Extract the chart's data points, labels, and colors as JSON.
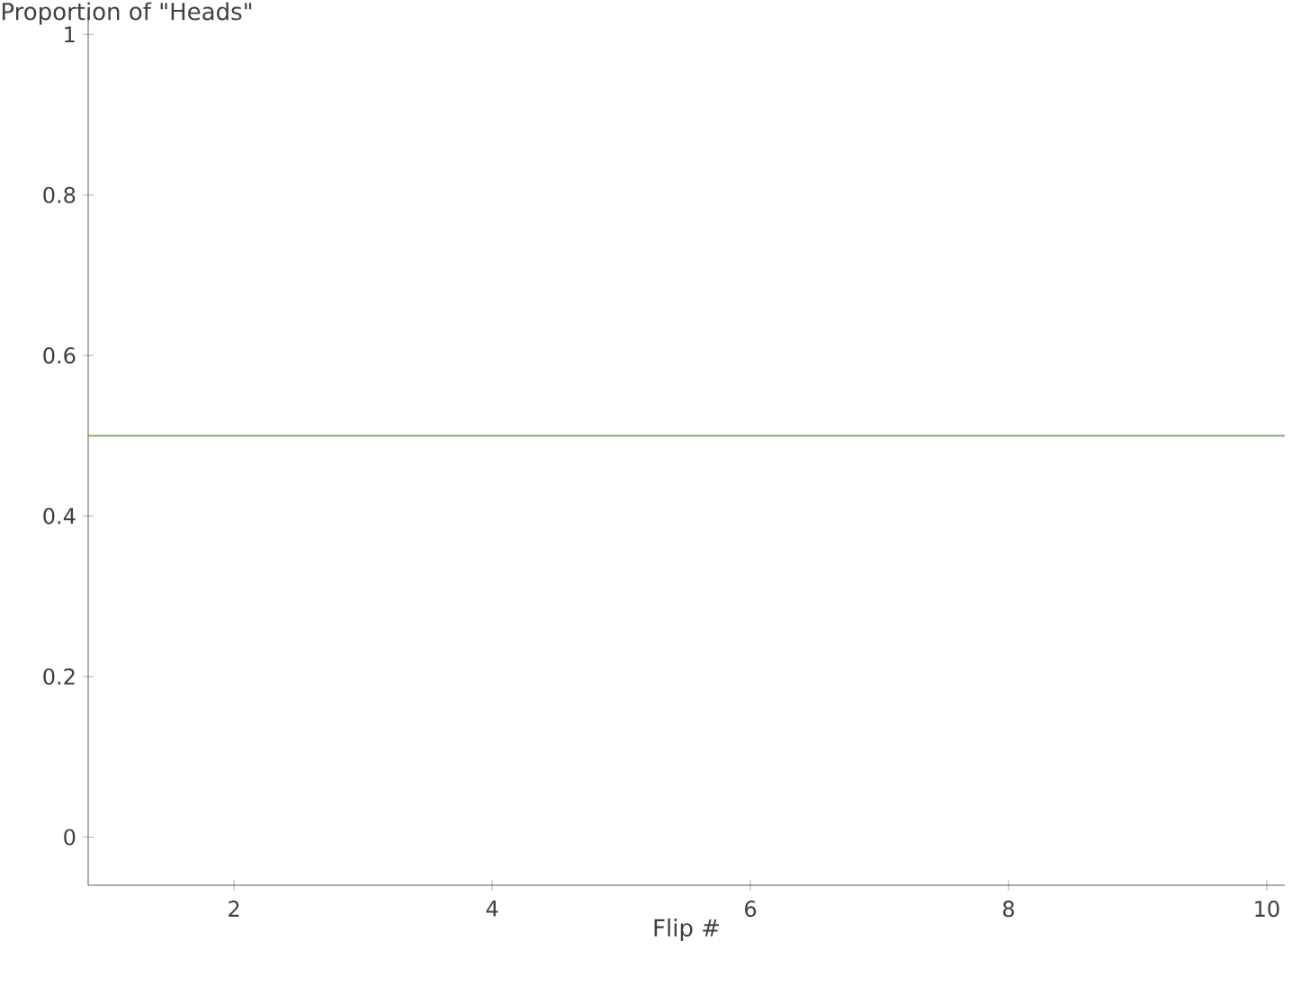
{
  "chart_data": {
    "type": "line",
    "ylabel": "Proportion of \"Heads\"",
    "xlabel": "Flip #",
    "xlim": [
      0.87,
      10.14
    ],
    "xticks": [
      2,
      4,
      6,
      8,
      10
    ],
    "ylim": [
      -0.06,
      1.025
    ],
    "yticks": [
      0,
      0.2,
      0.4,
      0.6,
      0.8,
      1
    ],
    "ref_lines": [
      {
        "axis": "y",
        "value": 0.5,
        "color": "#6aa84f"
      }
    ]
  }
}
